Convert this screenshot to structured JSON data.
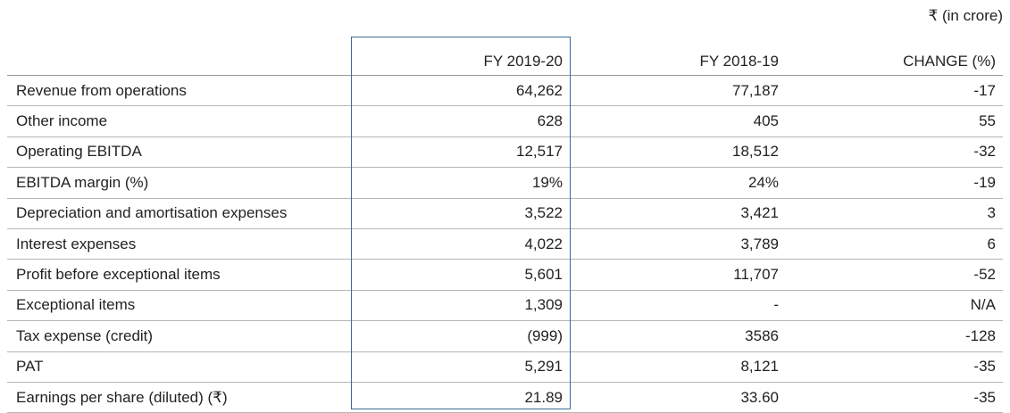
{
  "unit": "₹ (in crore)",
  "table": {
    "header": [
      "",
      "FY 2019-20",
      "FY 2018-19",
      "CHANGE (%)"
    ],
    "rows": [
      [
        "Revenue from operations",
        "64,262",
        "77,187",
        "-17"
      ],
      [
        "Other income",
        "628",
        "405",
        "55"
      ],
      [
        "Operating EBITDA",
        "12,517",
        "18,512",
        "-32"
      ],
      [
        "EBITDA margin (%)",
        "19%",
        "24%",
        "-19"
      ],
      [
        "Depreciation and amortisation expenses",
        "3,522",
        "3,421",
        "3"
      ],
      [
        "Interest expenses",
        "4,022",
        "3,789",
        "6"
      ],
      [
        "Profit before exceptional items",
        "5,601",
        "11,707",
        "-52"
      ],
      [
        "Exceptional items",
        "1,309",
        "-",
        "N/A"
      ],
      [
        "Tax expense (credit)",
        "(999)",
        "3586",
        "-128"
      ],
      [
        "PAT",
        "5,291",
        "8,121",
        "-35"
      ],
      [
        "Earnings per share (diluted) (₹)",
        "21.89",
        "33.60",
        "-35"
      ]
    ]
  }
}
